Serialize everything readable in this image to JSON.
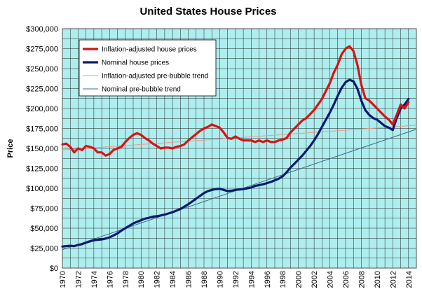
{
  "chart_data": {
    "type": "line",
    "title": "United States House Prices",
    "ylabel": "Price",
    "xlabel": "",
    "xlim": [
      1970,
      2015
    ],
    "ylim": [
      0,
      300000
    ],
    "grid": true,
    "legend_position": "top-left",
    "background_color": "#aeeeee",
    "x_ticks": [
      1970,
      1972,
      1974,
      1976,
      1978,
      1980,
      1982,
      1984,
      1986,
      1988,
      1990,
      1992,
      1994,
      1996,
      1998,
      2000,
      2002,
      2004,
      2006,
      2008,
      2010,
      2012,
      2014
    ],
    "x_tick_labels": [
      "1970",
      "1972",
      "1974",
      "1976",
      "1978",
      "1980",
      "1982",
      "1984",
      "1986",
      "1988",
      "1990",
      "1992",
      "1994",
      "1996",
      "1998",
      "2000",
      "2002",
      "2004",
      "2006",
      "2008",
      "2010",
      "2012",
      "2014"
    ],
    "y_ticks": [
      0,
      25000,
      50000,
      75000,
      100000,
      125000,
      150000,
      175000,
      200000,
      225000,
      250000,
      275000,
      300000
    ],
    "y_tick_labels": [
      "$0",
      "$25,000",
      "$50,000",
      "$75,000",
      "$100,000",
      "$125,000",
      "$150,000",
      "$175,000",
      "$200,000",
      "$225,000",
      "$250,000",
      "$275,000",
      "$300,000"
    ],
    "series": [
      {
        "name": "Inflation-adjusted house prices",
        "color": "#dd1111",
        "x": [
          1970,
          1970.5,
          1971,
          1971.5,
          1972,
          1972.5,
          1973,
          1973.5,
          1974,
          1974.5,
          1975,
          1975.5,
          1976,
          1976.5,
          1977,
          1977.5,
          1978,
          1978.5,
          1979,
          1979.5,
          1980,
          1980.5,
          1981,
          1981.5,
          1982,
          1982.5,
          1983,
          1983.5,
          1984,
          1984.5,
          1985,
          1985.5,
          1986,
          1986.5,
          1987,
          1987.5,
          1988,
          1988.5,
          1989,
          1989.5,
          1990,
          1990.5,
          1991,
          1991.5,
          1992,
          1992.5,
          1993,
          1993.5,
          1994,
          1994.5,
          1995,
          1995.5,
          1996,
          1996.5,
          1997,
          1997.5,
          1998,
          1998.5,
          1999,
          1999.5,
          2000,
          2000.5,
          2001,
          2001.5,
          2002,
          2002.5,
          2003,
          2003.5,
          2004,
          2004.5,
          2005,
          2005.5,
          2006,
          2006.5,
          2007,
          2007.5,
          2008,
          2008.5,
          2009,
          2009.5,
          2010,
          2010.5,
          2011,
          2011.5,
          2012,
          2012.5,
          2013,
          2013.5,
          2014
        ],
        "y": [
          155000,
          156000,
          152000,
          145000,
          150000,
          148000,
          153000,
          152000,
          150000,
          145000,
          145000,
          141000,
          143000,
          148000,
          150000,
          152000,
          158000,
          163000,
          167000,
          169000,
          167000,
          163000,
          160000,
          156000,
          153000,
          150000,
          151000,
          151000,
          150000,
          152000,
          153000,
          155000,
          160000,
          164000,
          168000,
          172000,
          175000,
          177000,
          180000,
          178000,
          176000,
          170000,
          163000,
          162000,
          165000,
          162000,
          160000,
          160000,
          160000,
          158000,
          160000,
          158000,
          160000,
          158000,
          158000,
          160000,
          161000,
          163000,
          170000,
          175000,
          180000,
          185000,
          188000,
          193000,
          198000,
          205000,
          212000,
          222000,
          232000,
          245000,
          255000,
          268000,
          275000,
          278000,
          272000,
          255000,
          230000,
          213000,
          210000,
          205000,
          200000,
          195000,
          190000,
          186000,
          180000,
          192000,
          205000,
          200000,
          208000
        ]
      },
      {
        "name": "Nominal house prices",
        "color": "#0a1a6e",
        "x": [
          1970,
          1970.5,
          1971,
          1971.5,
          1972,
          1972.5,
          1973,
          1973.5,
          1974,
          1974.5,
          1975,
          1975.5,
          1976,
          1976.5,
          1977,
          1977.5,
          1978,
          1978.5,
          1979,
          1979.5,
          1980,
          1980.5,
          1981,
          1981.5,
          1982,
          1982.5,
          1983,
          1983.5,
          1984,
          1984.5,
          1985,
          1985.5,
          1986,
          1986.5,
          1987,
          1987.5,
          1988,
          1988.5,
          1989,
          1989.5,
          1990,
          1990.5,
          1991,
          1991.5,
          1992,
          1992.5,
          1993,
          1993.5,
          1994,
          1994.5,
          1995,
          1995.5,
          1996,
          1996.5,
          1997,
          1997.5,
          1998,
          1998.5,
          1999,
          1999.5,
          2000,
          2000.5,
          2001,
          2001.5,
          2002,
          2002.5,
          2003,
          2003.5,
          2004,
          2004.5,
          2005,
          2005.5,
          2006,
          2006.5,
          2007,
          2007.5,
          2008,
          2008.5,
          2009,
          2009.5,
          2010,
          2010.5,
          2011,
          2011.5,
          2012,
          2012.5,
          2013,
          2013.5,
          2014
        ],
        "y": [
          27000,
          27500,
          28000,
          27500,
          29000,
          30000,
          32000,
          33500,
          35000,
          35500,
          36000,
          37000,
          38500,
          41000,
          43500,
          47000,
          50000,
          53000,
          56000,
          58000,
          60000,
          62000,
          63000,
          64500,
          65000,
          66000,
          67000,
          68500,
          70000,
          72000,
          74000,
          77000,
          80000,
          83500,
          87000,
          90500,
          94000,
          96500,
          98000,
          99000,
          99500,
          98000,
          96500,
          97000,
          98000,
          98500,
          99000,
          100000,
          101000,
          103000,
          104000,
          105000,
          106500,
          108000,
          110000,
          112000,
          115000,
          120000,
          126000,
          131000,
          136000,
          141000,
          147000,
          153000,
          160000,
          168000,
          177000,
          186000,
          195000,
          205000,
          216000,
          226000,
          233000,
          236000,
          234000,
          225000,
          210000,
          198000,
          192000,
          188000,
          186000,
          182000,
          178000,
          176000,
          173000,
          188000,
          200000,
          205000,
          212000
        ]
      },
      {
        "name": "Inflation-adjusted pre-bubble trend",
        "color": "#e89a8a",
        "x": [
          1970,
          2015
        ],
        "y": [
          148000,
          179000
        ]
      },
      {
        "name": "Nominal pre-bubble trend",
        "color": "#3a6e8e",
        "x": [
          1970,
          2015
        ],
        "y": [
          23000,
          174000
        ]
      }
    ]
  }
}
